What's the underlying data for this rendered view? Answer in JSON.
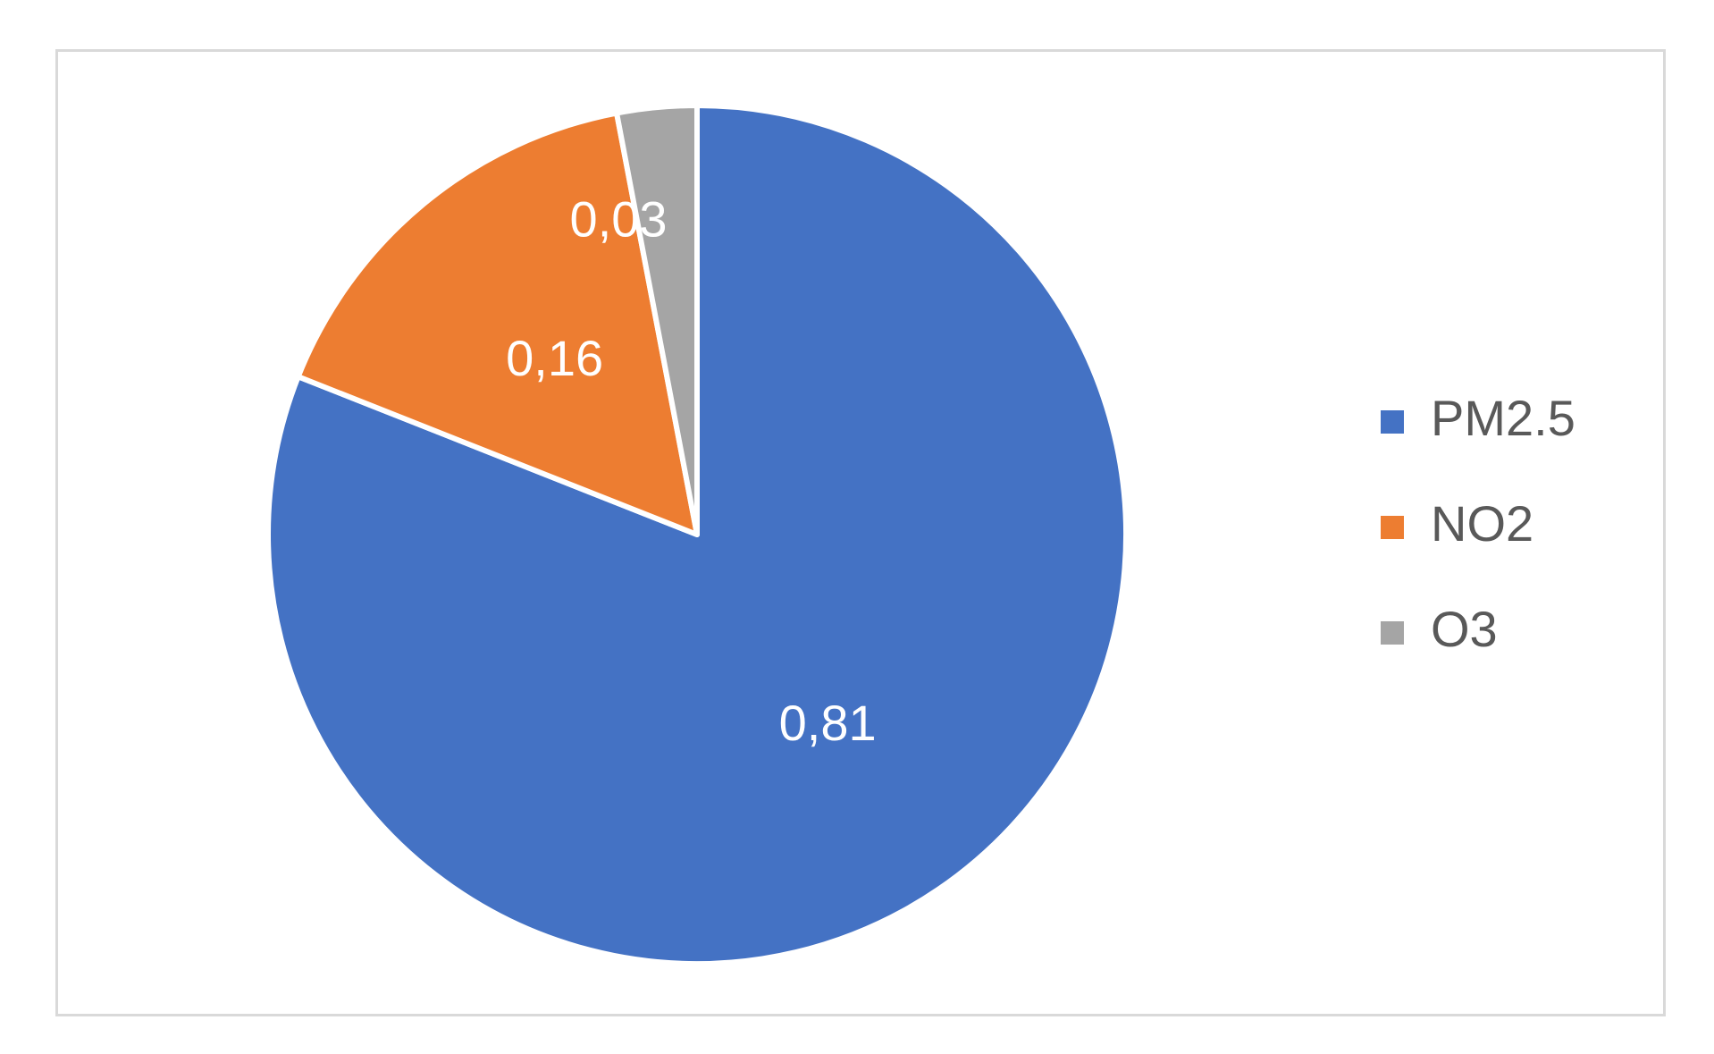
{
  "chart_data": {
    "type": "pie",
    "title": "",
    "categories": [
      "PM2.5",
      "NO2",
      "O3"
    ],
    "values": [
      0.81,
      0.16,
      0.03
    ],
    "value_labels": [
      "0,81",
      "0,16",
      "0,03"
    ],
    "colors": [
      "#4472C4",
      "#ED7D31",
      "#A5A5A5"
    ],
    "start_angle": "12 o'clock",
    "direction": "clockwise",
    "legend": {
      "position": "right",
      "entries": [
        "PM2.5",
        "NO2",
        "O3"
      ]
    }
  }
}
